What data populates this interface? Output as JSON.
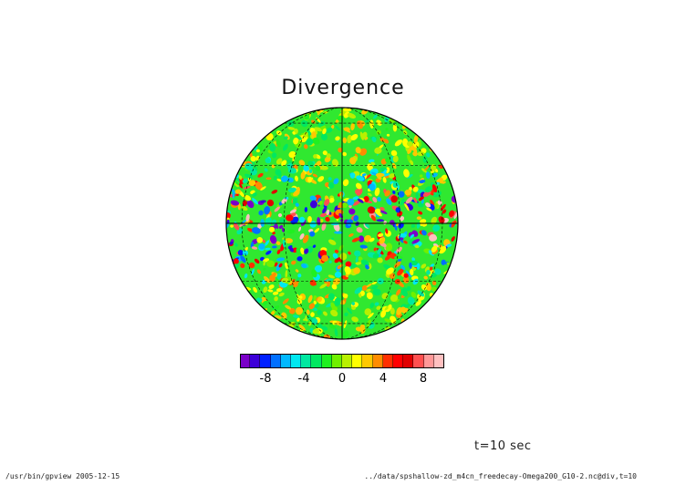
{
  "figure": {
    "title": "Divergence",
    "time_label": "t=10 sec",
    "footer_left": "/usr/bin/gpview   2005-12-15",
    "footer_right": "../data/spshallow-zd_m4cn_freedecay-Omega200_G10-2.nc@div,t=10"
  },
  "colorbar": {
    "levels": [
      -10,
      -9,
      -8,
      -7,
      -6,
      -5,
      -4,
      -3,
      -2,
      -1,
      0,
      1,
      2,
      3,
      4,
      5,
      6,
      7,
      8,
      9,
      10
    ],
    "colors": [
      "#7a00c8",
      "#3c00d8",
      "#0020ff",
      "#0070ff",
      "#00b8ff",
      "#00e8f0",
      "#00e8a0",
      "#00e860",
      "#20f020",
      "#70f000",
      "#b8f000",
      "#ffff00",
      "#ffc800",
      "#ff8c00",
      "#ff3000",
      "#ff0000",
      "#e00000",
      "#ff5050",
      "#ff9898",
      "#ffc0c0"
    ],
    "tick_labels": [
      "-8",
      "-4",
      "0",
      "4",
      "8"
    ]
  },
  "chart_data": {
    "type": "heatmap",
    "title": "Divergence",
    "projection": "orthographic",
    "field": "div",
    "time": "t=10 sec",
    "background_level": 0,
    "grid": true,
    "color_levels": [
      -10,
      -9,
      -8,
      -7,
      -6,
      -5,
      -4,
      -3,
      -2,
      -1,
      0,
      1,
      2,
      3,
      4,
      5,
      6,
      7,
      8,
      9,
      10
    ]
  }
}
